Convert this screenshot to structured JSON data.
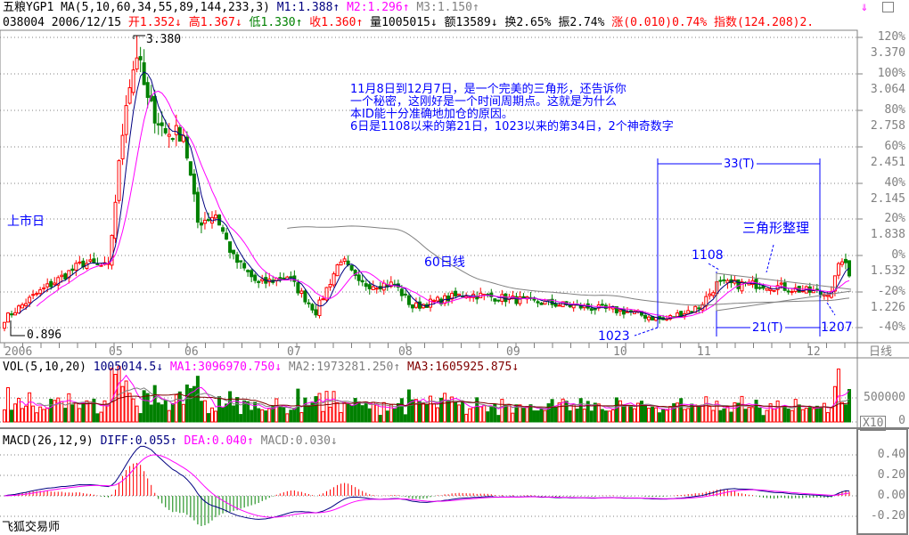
{
  "header": {
    "name": "五粮YGP1",
    "ma_params": "MA(5,10,60,34,55,89,144,233,3)",
    "m1": "M1:1.388",
    "m2": "M2:1.296",
    "m3": "M3:1.150",
    "code": "038004",
    "date": "2006/12/15",
    "open": "开1.352",
    "high": "高1.367",
    "low": "低1.330",
    "close": "收1.360",
    "volume": "量1005015",
    "amount": "额13589",
    "turnover": "换2.65%",
    "amplitude": "振2.74%",
    "change": "涨(0.010)0.74%",
    "index": "指数(124.208)2."
  },
  "annotations": {
    "note_lines": [
      "11月8日到12月7日，是一个完美的三角形，还告诉你",
      "一个秘密，这刚好是一个时间周期点。这就是为什么",
      "本ID能十分准确地加仓的原因。",
      "6日是1108以来的第21日，1023以来的第34日，2个神奇数字"
    ],
    "listing_day": "上市日",
    "ma60_label": "60日线",
    "triangle": "三角形整理",
    "span33": "33(T)",
    "span21": "21(T)",
    "d1023": "1023",
    "d1108": "1108",
    "d1207": "1207",
    "high_mark": "3.380",
    "low_mark": "0.896"
  },
  "price_axis": [
    {
      "pct": "120%",
      "price": "3.370"
    },
    {
      "pct": "100%",
      "price": "3.064"
    },
    {
      "pct": "80%",
      "price": "2.758"
    },
    {
      "pct": "60%",
      "price": "2.451"
    },
    {
      "pct": "40%",
      "price": "2.145"
    },
    {
      "pct": "20%",
      "price": "1.838"
    },
    {
      "pct": "0%",
      "price": "1.532"
    },
    {
      "pct": "-20%",
      "price": "1.226"
    },
    {
      "pct": "-40%",
      "price": ""
    }
  ],
  "x_labels": [
    "2006",
    "05",
    "06",
    "07",
    "08",
    "09",
    "10",
    "11",
    "12"
  ],
  "period_label": "日线",
  "volume": {
    "title": "VOL(5,10,20)",
    "value": "1005014.5",
    "ma1": "MA1:3096970.750",
    "ma2": "MA2:1973281.250",
    "ma3": "MA3:1605925.875",
    "axis": [
      "500000",
      "0"
    ],
    "scale": "X10"
  },
  "macd": {
    "title": "MACD(26,12,9)",
    "diff": "DIFF:0.055",
    "dea": "DEA:0.040",
    "macd": "MACD:0.030",
    "axis": [
      "0.40",
      "0.20",
      "0.00",
      "-0.20"
    ]
  },
  "footer": "飞狐交易师",
  "colors": {
    "up": "#ff0000",
    "down": "#008000",
    "ma5": "#000080",
    "ma10": "#ff00ff",
    "ma60": "#808080",
    "annotation": "#0000ff"
  },
  "chart_data": {
    "type": "candlestick",
    "title": "",
    "y_scale": "percent from 1.532",
    "ylim": [
      0.85,
      3.45
    ],
    "close_keypoints": [
      [
        0,
        1.0
      ],
      [
        9,
        1.21
      ],
      [
        22,
        1.47
      ],
      [
        29,
        1.43
      ],
      [
        34,
        2.85
      ],
      [
        37,
        3.23
      ],
      [
        40,
        2.82
      ],
      [
        45,
        2.56
      ],
      [
        50,
        2.56
      ],
      [
        54,
        1.81
      ],
      [
        59,
        1.88
      ],
      [
        64,
        1.51
      ],
      [
        71,
        1.29
      ],
      [
        79,
        1.36
      ],
      [
        87,
        1.06
      ],
      [
        94,
        1.51
      ],
      [
        99,
        1.29
      ],
      [
        109,
        1.29
      ],
      [
        114,
        1.1
      ],
      [
        129,
        1.21
      ],
      [
        149,
        1.14
      ],
      [
        174,
        1.06
      ],
      [
        184,
        0.99
      ],
      [
        194,
        1.1
      ],
      [
        199,
        1.29
      ],
      [
        212,
        1.29
      ],
      [
        229,
        1.21
      ],
      [
        231,
        1.25
      ],
      [
        234,
        1.51
      ],
      [
        236,
        1.36
      ]
    ],
    "high": 3.38,
    "low": 0.896,
    "last": {
      "open": 1.352,
      "high": 1.367,
      "low": 1.33,
      "close": 1.36
    }
  }
}
